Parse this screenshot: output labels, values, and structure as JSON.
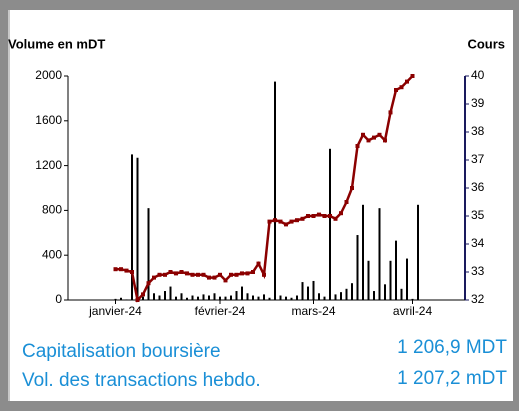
{
  "chart_data": {
    "type": "combo",
    "y_label": "Volume en mDT",
    "y2_label": "Cours",
    "categories": [
      null,
      "janvier-24",
      null,
      null,
      null,
      null,
      null,
      null,
      null,
      null,
      null,
      null,
      null,
      null,
      null,
      null,
      null,
      null,
      null,
      null,
      "février-24",
      null,
      null,
      null,
      null,
      null,
      null,
      null,
      null,
      null,
      null,
      null,
      null,
      null,
      null,
      null,
      null,
      "mars-24",
      null,
      null,
      null,
      null,
      null,
      null,
      null,
      null,
      null,
      null,
      null,
      null,
      null,
      null,
      null,
      null,
      null,
      "avril-24",
      null,
      null,
      null,
      null,
      null,
      null
    ],
    "ylim": [
      0,
      2000
    ],
    "yticks": [
      0,
      400,
      800,
      1200,
      1600,
      2000
    ],
    "y2lim": [
      32,
      40
    ],
    "y2ticks": [
      32,
      33,
      34,
      35,
      36,
      37,
      38,
      39,
      40
    ],
    "series": [
      {
        "type": "bar",
        "color": "#000000",
        "values": [
          0,
          10,
          20,
          5,
          1300,
          1270,
          30,
          820,
          60,
          40,
          80,
          120,
          30,
          60,
          20,
          40,
          30,
          50,
          40,
          60,
          30,
          30,
          40,
          80,
          120,
          60,
          40,
          30,
          50,
          20,
          1950,
          40,
          30,
          20,
          40,
          160,
          120,
          170,
          60,
          30,
          1350,
          50,
          70,
          100,
          150,
          580,
          850,
          350,
          80,
          820,
          140,
          350,
          530,
          100,
          370,
          10,
          850,
          0,
          0,
          0,
          0,
          0
        ]
      },
      {
        "type": "line",
        "axis": "y2",
        "color": "#8b0000",
        "values": [
          null,
          33.1,
          33.1,
          33.05,
          33.0,
          32.0,
          32.2,
          32.6,
          32.8,
          32.9,
          32.9,
          33.0,
          32.95,
          33.0,
          32.95,
          32.9,
          32.9,
          32.9,
          32.8,
          32.8,
          32.9,
          32.7,
          32.9,
          32.9,
          32.95,
          32.95,
          33.0,
          33.3,
          32.9,
          34.8,
          34.85,
          34.8,
          34.7,
          34.8,
          34.85,
          34.9,
          35.0,
          35.0,
          35.05,
          35.0,
          35.0,
          34.9,
          35.1,
          35.5,
          36.0,
          37.5,
          37.9,
          37.7,
          37.8,
          37.9,
          37.7,
          38.7,
          39.5,
          39.6,
          39.8,
          40.0,
          null,
          null,
          null,
          null,
          null,
          null
        ]
      }
    ]
  },
  "info": [
    {
      "label": "Capitalisation boursière",
      "value": "1 206,9 MDT"
    },
    {
      "label": "Vol. des transactions hebdo.",
      "value": "1 207,2 mDT"
    }
  ]
}
